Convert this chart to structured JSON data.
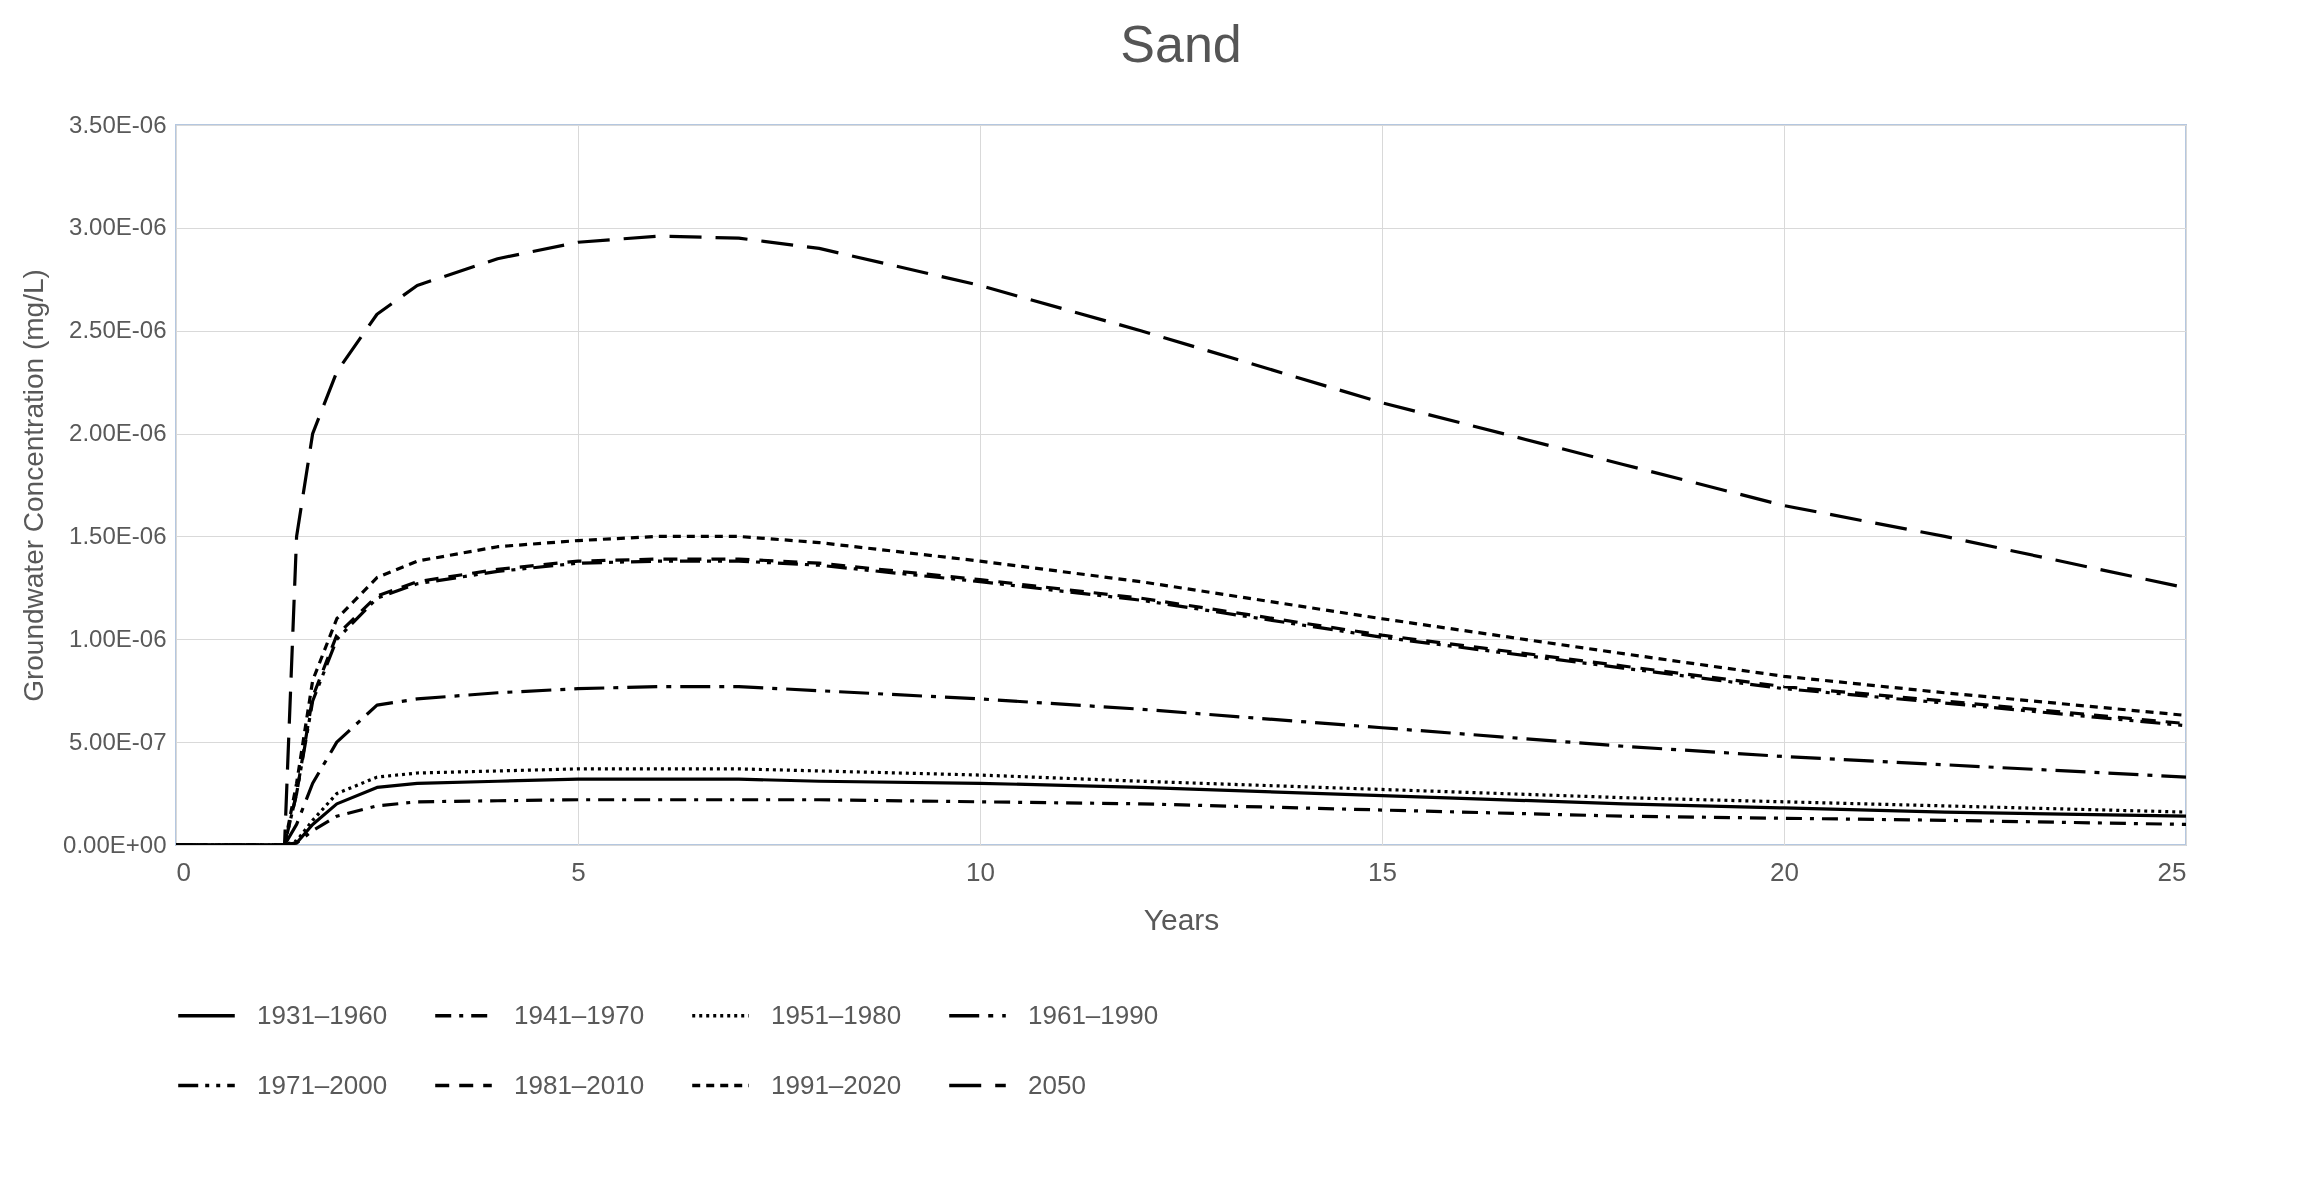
{
  "chart_data": {
    "type": "line",
    "title": "Sand",
    "xlabel": "Years",
    "ylabel": "Groundwater Concentration (mg/L)",
    "x": [
      0,
      1.35,
      1.5,
      1.7,
      2,
      2.5,
      3,
      4,
      5,
      6,
      7,
      8,
      10,
      12,
      15,
      18,
      20,
      22,
      25
    ],
    "series": [
      {
        "name": "1931–1960",
        "color": "#000000",
        "line_style": "solid",
        "values": [
          0,
          0,
          1e-08,
          1e-07,
          2e-07,
          2.8e-07,
          3e-07,
          3.1e-07,
          3.2e-07,
          3.2e-07,
          3.2e-07,
          3.1e-07,
          3e-07,
          2.8e-07,
          2.4e-07,
          2e-07,
          1.8e-07,
          1.6e-07,
          1.4e-07
        ]
      },
      {
        "name": "1941–1970",
        "color": "#000000",
        "line_style": "dashdot",
        "values": [
          0,
          0,
          1e-08,
          7e-08,
          1.4e-07,
          1.9e-07,
          2.1e-07,
          2.15e-07,
          2.2e-07,
          2.2e-07,
          2.2e-07,
          2.2e-07,
          2.1e-07,
          2e-07,
          1.7e-07,
          1.4e-07,
          1.3e-07,
          1.2e-07,
          1e-07
        ]
      },
      {
        "name": "1951–1980",
        "color": "#000000",
        "line_style": "dotted",
        "values": [
          0,
          0,
          2e-08,
          1.2e-07,
          2.5e-07,
          3.3e-07,
          3.5e-07,
          3.6e-07,
          3.7e-07,
          3.7e-07,
          3.7e-07,
          3.6e-07,
          3.4e-07,
          3.1e-07,
          2.7e-07,
          2.3e-07,
          2.1e-07,
          1.9e-07,
          1.6e-07
        ]
      },
      {
        "name": "1961–1990",
        "color": "#000000",
        "line_style": "longdashdot",
        "values": [
          0,
          0,
          1e-07,
          3e-07,
          5e-07,
          6.8e-07,
          7.1e-07,
          7.4e-07,
          7.6e-07,
          7.7e-07,
          7.7e-07,
          7.5e-07,
          7.1e-07,
          6.6e-07,
          5.7e-07,
          4.8e-07,
          4.3e-07,
          3.9e-07,
          3.3e-07
        ]
      },
      {
        "name": "1971–2000",
        "color": "#000000",
        "line_style": "dashdotdot",
        "values": [
          0,
          0,
          2.5e-07,
          7e-07,
          1e-06,
          1.2e-06,
          1.27e-06,
          1.33e-06,
          1.37e-06,
          1.38e-06,
          1.38e-06,
          1.36e-06,
          1.28e-06,
          1.19e-06,
          1.01e-06,
          8.6e-07,
          7.6e-07,
          6.9e-07,
          5.8e-07
        ]
      },
      {
        "name": "1981–2010",
        "color": "#000000",
        "line_style": "dashed",
        "values": [
          0,
          0,
          2.5e-07,
          7.2e-07,
          1.02e-06,
          1.21e-06,
          1.28e-06,
          1.34e-06,
          1.38e-06,
          1.39e-06,
          1.39e-06,
          1.37e-06,
          1.29e-06,
          1.2e-06,
          1.02e-06,
          8.7e-07,
          7.7e-07,
          7e-07,
          5.9e-07
        ]
      },
      {
        "name": "1991–2020",
        "color": "#000000",
        "line_style": "shortdash",
        "values": [
          0,
          0,
          3e-07,
          8e-07,
          1.1e-06,
          1.3e-06,
          1.38e-06,
          1.45e-06,
          1.48e-06,
          1.5e-06,
          1.5e-06,
          1.47e-06,
          1.38e-06,
          1.28e-06,
          1.1e-06,
          9.3e-07,
          8.2e-07,
          7.4e-07,
          6.3e-07
        ]
      },
      {
        "name": "2050",
        "color": "#000000",
        "line_style": "longdash",
        "values": [
          0,
          0,
          1.5e-06,
          2e-06,
          2.3e-06,
          2.58e-06,
          2.72e-06,
          2.85e-06,
          2.93e-06,
          2.96e-06,
          2.95e-06,
          2.9e-06,
          2.72e-06,
          2.5e-06,
          2.15e-06,
          1.85e-06,
          1.65e-06,
          1.5e-06,
          1.25e-06
        ]
      }
    ],
    "xlim": [
      0,
      25
    ],
    "xticks": [
      0,
      5,
      10,
      15,
      20,
      25
    ],
    "ylim": [
      0,
      3.5e-06
    ],
    "yticks": [
      {
        "value": 0,
        "label": "0.00E+00"
      },
      {
        "value": 5e-07,
        "label": "5.00E-07"
      },
      {
        "value": 1e-06,
        "label": "1.00E-06"
      },
      {
        "value": 1.5e-06,
        "label": "1.50E-06"
      },
      {
        "value": 2e-06,
        "label": "2.00E-06"
      },
      {
        "value": 2.5e-06,
        "label": "2.50E-06"
      },
      {
        "value": 3e-06,
        "label": "3.00E-06"
      },
      {
        "value": 3.5e-06,
        "label": "3.50E-06"
      }
    ],
    "grid": true,
    "legend": "bottom"
  }
}
